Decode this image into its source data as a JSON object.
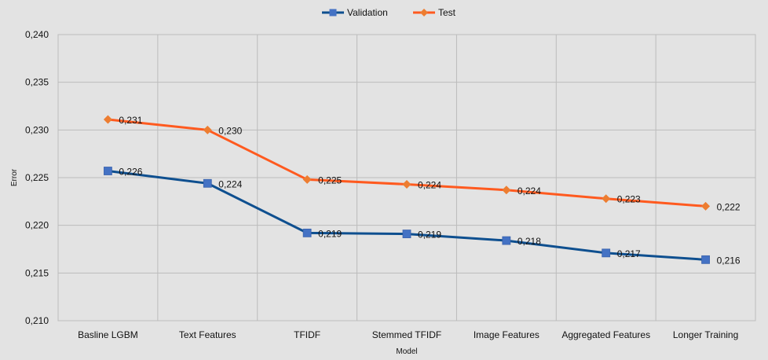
{
  "chart_data": {
    "type": "line",
    "title": "",
    "xlabel": "Model",
    "ylabel": "Error",
    "ylim": [
      0.21,
      0.24
    ],
    "ytick_step": 0.005,
    "yticks": [
      "0,210",
      "0,215",
      "0,220",
      "0,225",
      "0,230",
      "0,235",
      "0,240"
    ],
    "grid": true,
    "legend_position": "top-center",
    "categories": [
      "Basline LGBM",
      "Text Features",
      "TFIDF",
      "Stemmed TFIDF",
      "Image Features",
      "Aggregated Features",
      "Longer Training"
    ],
    "series": [
      {
        "name": "Validation",
        "color": "#0e4f8f",
        "marker_color": "#4472c4",
        "marker": "square",
        "values": [
          0.2257,
          0.2244,
          0.2192,
          0.2191,
          0.2184,
          0.2171,
          0.2164
        ],
        "labels": [
          "0,226",
          "0,224",
          "0,219",
          "0,219",
          "0,218",
          "0,217",
          "0,216"
        ]
      },
      {
        "name": "Test",
        "color": "#ff5a1f",
        "marker_color": "#ed7d31",
        "marker": "diamond",
        "values": [
          0.2311,
          0.23,
          0.2248,
          0.2243,
          0.2237,
          0.2228,
          0.222
        ],
        "labels": [
          "0,231",
          "0,230",
          "0,225",
          "0,224",
          "0,224",
          "0,223",
          "0,222"
        ]
      }
    ]
  }
}
